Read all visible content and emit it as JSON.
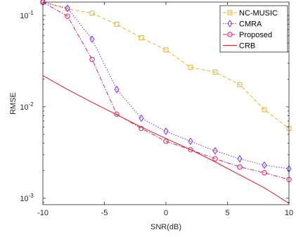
{
  "chart_data": {
    "type": "line",
    "xlabel": "SNR(dB)",
    "ylabel": "RMSE",
    "xlim": [
      -10,
      10
    ],
    "ylim": [
      0.00085,
      0.14
    ],
    "y_scale": "log",
    "grid": false,
    "legend_position": "top-right",
    "x_ticks": [
      -10,
      -5,
      0,
      5,
      10
    ],
    "x_tick_labels": [
      "-10",
      "-5",
      "0",
      "5",
      "10"
    ],
    "y_ticks": [
      {
        "value": 0.1,
        "base": "10",
        "exp": "-1"
      },
      {
        "value": 0.01,
        "base": "10",
        "exp": "-2"
      },
      {
        "value": 0.001,
        "base": "10",
        "exp": "-3"
      }
    ],
    "x": [
      -10,
      -8,
      -6,
      -4,
      -2,
      0,
      2,
      4,
      6,
      8,
      10
    ],
    "series": [
      {
        "name": "NC-MUSIC",
        "color": "#EDB120",
        "line": "dashed",
        "marker": "square",
        "values": [
          0.14,
          0.118,
          0.106,
          0.08,
          0.057,
          0.042,
          0.027,
          0.024,
          0.0175,
          0.0093,
          0.0058
        ]
      },
      {
        "name": "CMRA",
        "color": "#7E2FEF",
        "line": "dotted",
        "marker": "diamond",
        "values": [
          0.14,
          0.12,
          0.055,
          0.0155,
          0.0075,
          0.0054,
          0.0042,
          0.0033,
          0.0027,
          0.0023,
          0.0021
        ]
      },
      {
        "name": "Proposed",
        "color": "#E0206B",
        "line": "dashdot",
        "marker": "circle",
        "values": [
          0.14,
          0.098,
          0.033,
          0.0083,
          0.0058,
          0.0042,
          0.0034,
          0.0027,
          0.0022,
          0.0019,
          0.0016
        ]
      },
      {
        "name": "CRB",
        "color": "#E01B1B",
        "line": "solid",
        "marker": "none",
        "x": [
          -10,
          -8,
          -6,
          -4,
          -2,
          0,
          2,
          4,
          6,
          8,
          10
        ],
        "values": [
          0.022,
          0.0155,
          0.0112,
          0.0082,
          0.006,
          0.0045,
          0.0034,
          0.0025,
          0.0018,
          0.0013,
          0.00088
        ]
      }
    ]
  }
}
